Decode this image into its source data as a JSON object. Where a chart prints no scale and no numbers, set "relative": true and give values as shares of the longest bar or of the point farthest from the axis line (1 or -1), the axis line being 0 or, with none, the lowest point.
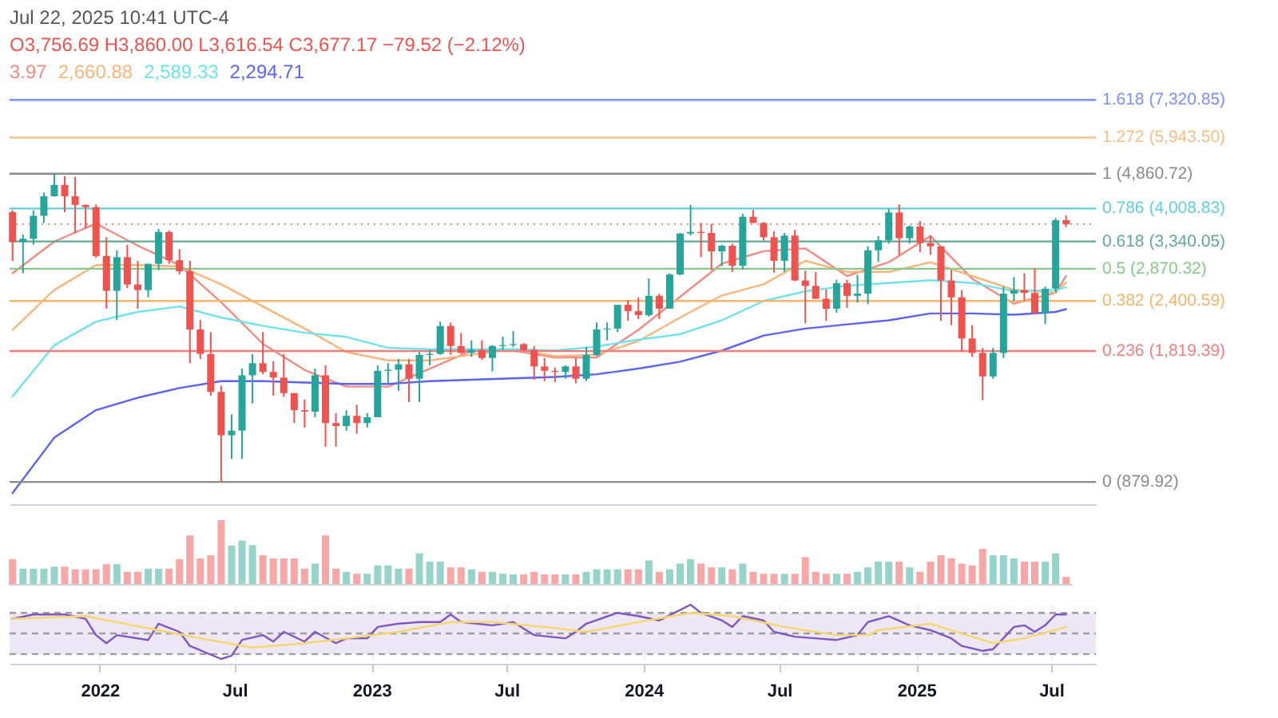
{
  "chart_data": [
    {
      "type": "candlestick",
      "title": "O3,756.69 H3,860.00 L3,616.54 C3,677.17 −79.52 (−2.12%)",
      "annotations": [
        "Jul 22, 2025 10:41 UTC-4",
        "3.97",
        "2,660.88",
        "2,589.33",
        "2,294.71"
      ],
      "log": true,
      "ylim": [
        778,
        7900
      ],
      "xlim": [
        "2021-09-02",
        "2025-08-30"
      ],
      "tick_labels": false,
      "x": [
        "2021-09-06",
        "2021-09-20",
        "2021-10-04",
        "2021-10-18",
        "2021-11-01",
        "2021-11-15",
        "2021-11-29",
        "2021-12-13",
        "2021-12-27",
        "2022-01-10",
        "2022-01-24",
        "2022-02-07",
        "2022-02-21",
        "2022-03-07",
        "2022-03-21",
        "2022-04-04",
        "2022-04-18",
        "2022-05-02",
        "2022-05-16",
        "2022-05-30",
        "2022-06-13",
        "2022-06-27",
        "2022-07-11",
        "2022-07-25",
        "2022-08-08",
        "2022-08-22",
        "2022-09-05",
        "2022-09-19",
        "2022-10-03",
        "2022-10-17",
        "2022-10-31",
        "2022-11-14",
        "2022-11-28",
        "2022-12-12",
        "2022-12-26",
        "2023-01-09",
        "2023-01-23",
        "2023-02-06",
        "2023-02-20",
        "2023-03-06",
        "2023-03-20",
        "2023-04-03",
        "2023-04-17",
        "2023-05-01",
        "2023-05-15",
        "2023-05-29",
        "2023-06-12",
        "2023-06-26",
        "2023-07-10",
        "2023-07-24",
        "2023-08-07",
        "2023-08-21",
        "2023-09-04",
        "2023-09-18",
        "2023-10-02",
        "2023-10-16",
        "2023-10-30",
        "2023-11-13",
        "2023-11-27",
        "2023-12-11",
        "2023-12-25",
        "2024-01-08",
        "2024-01-22",
        "2024-02-05",
        "2024-02-19",
        "2024-03-04",
        "2024-03-18",
        "2024-04-01",
        "2024-04-15",
        "2024-04-29",
        "2024-05-13",
        "2024-05-27",
        "2024-06-10",
        "2024-06-24",
        "2024-07-08",
        "2024-07-22",
        "2024-08-05",
        "2024-08-19",
        "2024-09-02",
        "2024-09-16",
        "2024-09-30",
        "2024-10-14",
        "2024-10-28",
        "2024-11-11",
        "2024-11-25",
        "2024-12-09",
        "2024-12-23",
        "2025-01-06",
        "2025-01-20",
        "2025-02-03",
        "2025-02-17",
        "2025-03-03",
        "2025-03-17",
        "2025-03-31",
        "2025-04-14",
        "2025-04-28",
        "2025-05-12",
        "2025-05-26",
        "2025-06-09",
        "2025-06-23",
        "2025-07-07",
        "2025-07-21"
      ],
      "ohlc": [
        [
          3930,
          3970,
          3000,
          3330
        ],
        [
          3330,
          3470,
          2800,
          3390
        ],
        [
          3390,
          3970,
          3280,
          3850
        ],
        [
          3850,
          4380,
          3700,
          4290
        ],
        [
          4290,
          4860.72,
          4280,
          4570
        ],
        [
          4570,
          4800,
          3930,
          4290
        ],
        [
          4290,
          4780,
          3500,
          4090
        ],
        [
          4090,
          4100,
          3600,
          4040
        ],
        [
          4040,
          4100,
          3050,
          3080
        ],
        [
          3080,
          3420,
          2300,
          2540
        ],
        [
          2540,
          3180,
          2160,
          3060
        ],
        [
          3060,
          3280,
          2580,
          2630
        ],
        [
          2630,
          3000,
          2300,
          2550
        ],
        [
          2550,
          2950,
          2450,
          2950
        ],
        [
          2950,
          3580,
          2850,
          3520
        ],
        [
          3520,
          3550,
          2950,
          3010
        ],
        [
          3010,
          3200,
          2780,
          2830
        ],
        [
          2830,
          3000,
          1700,
          2050
        ],
        [
          2050,
          2160,
          1740,
          1790
        ],
        [
          1790,
          2020,
          1420,
          1450
        ],
        [
          1450,
          1500,
          879.92,
          1140
        ],
        [
          1140,
          1280,
          1000,
          1170
        ],
        [
          1170,
          1650,
          1000,
          1590
        ],
        [
          1590,
          1790,
          1360,
          1700
        ],
        [
          1700,
          2020,
          1600,
          1620
        ],
        [
          1620,
          1720,
          1420,
          1570
        ],
        [
          1570,
          1790,
          1410,
          1440
        ],
        [
          1440,
          1440,
          1220,
          1310
        ],
        [
          1310,
          1390,
          1190,
          1300
        ],
        [
          1300,
          1650,
          1260,
          1590
        ],
        [
          1590,
          1680,
          1070,
          1220
        ],
        [
          1220,
          1290,
          1070,
          1200
        ],
        [
          1200,
          1310,
          1170,
          1270
        ],
        [
          1270,
          1350,
          1150,
          1220
        ],
        [
          1220,
          1290,
          1190,
          1260
        ],
        [
          1260,
          1680,
          1260,
          1630
        ],
        [
          1630,
          1700,
          1520,
          1640
        ],
        [
          1640,
          1740,
          1460,
          1690
        ],
        [
          1690,
          1740,
          1370,
          1560
        ],
        [
          1560,
          1810,
          1370,
          1780
        ],
        [
          1780,
          1830,
          1680,
          1790
        ],
        [
          1790,
          2140,
          1780,
          2090
        ],
        [
          2090,
          2130,
          1780,
          1870
        ],
        [
          1870,
          2010,
          1790,
          1800
        ],
        [
          1800,
          1930,
          1760,
          1830
        ],
        [
          1830,
          1930,
          1730,
          1750
        ],
        [
          1750,
          1880,
          1625,
          1870
        ],
        [
          1870,
          1970,
          1830,
          1880
        ],
        [
          1880,
          2030,
          1860,
          1890
        ],
        [
          1890,
          1900,
          1820,
          1830
        ],
        [
          1830,
          1870,
          1550,
          1670
        ],
        [
          1670,
          1750,
          1540,
          1630
        ],
        [
          1630,
          1660,
          1530,
          1620
        ],
        [
          1620,
          1680,
          1560,
          1670
        ],
        [
          1670,
          1750,
          1520,
          1560
        ],
        [
          1560,
          1860,
          1540,
          1780
        ],
        [
          1780,
          2130,
          1770,
          2050
        ],
        [
          2050,
          2130,
          1930,
          2060
        ],
        [
          2060,
          2350,
          2020,
          2350
        ],
        [
          2350,
          2410,
          2150,
          2270
        ],
        [
          2270,
          2450,
          2170,
          2220
        ],
        [
          2220,
          2720,
          2200,
          2470
        ],
        [
          2470,
          2500,
          2170,
          2300
        ],
        [
          2300,
          2800,
          2300,
          2780
        ],
        [
          2780,
          3500,
          2770,
          3490
        ],
        [
          3490,
          4090,
          3450,
          3520
        ],
        [
          3520,
          3700,
          3060,
          3500
        ],
        [
          3500,
          3680,
          2850,
          3160
        ],
        [
          3160,
          3280,
          2910,
          3260
        ],
        [
          3260,
          3300,
          2820,
          2920
        ],
        [
          2920,
          3890,
          2860,
          3830
        ],
        [
          3830,
          3980,
          3700,
          3700
        ],
        [
          3700,
          3720,
          3360,
          3420
        ],
        [
          3420,
          3530,
          2810,
          3000
        ],
        [
          3000,
          3500,
          2820,
          3450
        ],
        [
          3450,
          3560,
          2680,
          2690
        ],
        [
          2690,
          2840,
          2120,
          2610
        ],
        [
          2610,
          2820,
          2430,
          2430
        ],
        [
          2430,
          2560,
          2150,
          2300
        ],
        [
          2300,
          2700,
          2250,
          2650
        ],
        [
          2650,
          2700,
          2310,
          2470
        ],
        [
          2470,
          2770,
          2380,
          2500
        ],
        [
          2500,
          3250,
          2360,
          3180
        ],
        [
          3180,
          3440,
          2980,
          3360
        ],
        [
          3360,
          4000,
          3300,
          3920
        ],
        [
          3920,
          4100,
          3100,
          3400
        ],
        [
          3400,
          3650,
          3300,
          3630
        ],
        [
          3630,
          3740,
          3150,
          3310
        ],
        [
          3310,
          3450,
          3100,
          3250
        ],
        [
          3250,
          3250,
          2150,
          2690
        ],
        [
          2690,
          2850,
          2100,
          2450
        ],
        [
          2450,
          2550,
          1810,
          1950
        ],
        [
          1950,
          2100,
          1760,
          1800
        ],
        [
          1800,
          1850,
          1385,
          1580
        ],
        [
          1580,
          1850,
          1560,
          1800
        ],
        [
          1800,
          2600,
          1750,
          2500
        ],
        [
          2500,
          2740,
          2400,
          2550
        ],
        [
          2550,
          2800,
          2400,
          2510
        ],
        [
          2510,
          2880,
          2230,
          2250
        ],
        [
          2250,
          2600,
          2110,
          2570
        ],
        [
          2570,
          3800,
          2520,
          3756.69
        ],
        [
          3756.69,
          3860,
          3616.54,
          3677.17
        ]
      ],
      "colors": [
        "#ef5350",
        "#26a69a",
        "#26a69a",
        "#26a69a",
        "#26a69a",
        "#ef5350",
        "#ef5350",
        "#ef5350",
        "#ef5350",
        "#ef5350",
        "#26a69a",
        "#ef5350",
        "#ef5350",
        "#26a69a",
        "#26a69a",
        "#ef5350",
        "#ef5350",
        "#ef5350",
        "#ef5350",
        "#ef5350",
        "#ef5350",
        "#26a69a",
        "#26a69a",
        "#26a69a",
        "#ef5350",
        "#ef5350",
        "#ef5350",
        "#ef5350",
        "#ef5350",
        "#26a69a",
        "#ef5350",
        "#ef5350",
        "#26a69a",
        "#ef5350",
        "#26a69a",
        "#26a69a",
        "#26a69a",
        "#26a69a",
        "#ef5350",
        "#26a69a",
        "#26a69a",
        "#26a69a",
        "#ef5350",
        "#ef5350",
        "#26a69a",
        "#ef5350",
        "#26a69a",
        "#26a69a",
        "#26a69a",
        "#ef5350",
        "#ef5350",
        "#ef5350",
        "#ef5350",
        "#26a69a",
        "#ef5350",
        "#26a69a",
        "#26a69a",
        "#26a69a",
        "#26a69a",
        "#ef5350",
        "#ef5350",
        "#26a69a",
        "#ef5350",
        "#26a69a",
        "#26a69a",
        "#26a69a",
        "#ef5350",
        "#ef5350",
        "#26a69a",
        "#ef5350",
        "#26a69a",
        "#ef5350",
        "#ef5350",
        "#ef5350",
        "#26a69a",
        "#ef5350",
        "#ef5350",
        "#ef5350",
        "#ef5350",
        "#26a69a",
        "#ef5350",
        "#26a69a",
        "#26a69a",
        "#26a69a",
        "#26a69a",
        "#ef5350",
        "#26a69a",
        "#ef5350",
        "#ef5350",
        "#ef5350",
        "#ef5350",
        "#ef5350",
        "#ef5350",
        "#ef5350",
        "#26a69a",
        "#26a69a",
        "#26a69a",
        "#ef5350",
        "#ef5350",
        "#26a69a",
        "#26a69a",
        "#ef5350"
      ],
      "series": [
        {
          "type": "line",
          "color": "#f28b82",
          "x": [
            "2021-09-06",
            "2021-11-01",
            "2021-12-27",
            "2022-02-21",
            "2022-04-18",
            "2022-06-13",
            "2022-08-08",
            "2022-10-03",
            "2022-11-28",
            "2023-01-23",
            "2023-03-20",
            "2023-05-15",
            "2023-07-10",
            "2023-09-04",
            "2023-10-30",
            "2023-12-25",
            "2024-02-19",
            "2024-04-15",
            "2024-06-10",
            "2024-08-05",
            "2024-09-30",
            "2024-11-25",
            "2025-01-20",
            "2025-03-17",
            "2025-05-12",
            "2025-07-07",
            "2025-07-21"
          ],
          "values": [
            2799,
            3338,
            3688,
            3262,
            2930,
            2383,
            1893,
            1637,
            1493,
            1493,
            1650,
            1823,
            1823,
            1755,
            1755,
            2045,
            2457,
            2953,
            3164,
            3213,
            2757,
            2976,
            3441,
            2715,
            2365,
            2514,
            2757
          ]
        },
        {
          "type": "line",
          "color": "#f9b57a",
          "x": [
            "2021-09-06",
            "2021-11-01",
            "2021-12-27",
            "2022-02-21",
            "2022-04-18",
            "2022-06-13",
            "2022-08-08",
            "2022-10-03",
            "2022-11-28",
            "2023-01-23",
            "2023-03-20",
            "2023-05-15",
            "2023-07-10",
            "2023-09-04",
            "2023-10-30",
            "2023-12-25",
            "2024-02-19",
            "2024-04-15",
            "2024-06-10",
            "2024-08-05",
            "2024-09-30",
            "2024-11-25",
            "2025-01-20",
            "2025-03-17",
            "2025-05-12",
            "2025-07-07",
            "2025-07-21"
          ],
          "values": [
            2045,
            2553,
            2930,
            2930,
            2908,
            2633,
            2329,
            2060,
            1809,
            1727,
            1727,
            1782,
            1837,
            1768,
            1782,
            1922,
            2190,
            2476,
            2633,
            2999,
            2821,
            2821,
            2976,
            2757,
            2553,
            2514,
            2660.88
          ]
        },
        {
          "type": "line",
          "color": "#6ee3ec",
          "x": [
            "2021-09-06",
            "2021-11-01",
            "2021-12-27",
            "2022-02-21",
            "2022-04-18",
            "2022-06-13",
            "2022-08-08",
            "2022-10-03",
            "2022-11-28",
            "2023-01-23",
            "2023-03-20",
            "2023-05-15",
            "2023-07-10",
            "2023-09-04",
            "2023-10-30",
            "2023-12-25",
            "2024-02-19",
            "2024-04-15",
            "2024-06-10",
            "2024-08-05",
            "2024-09-30",
            "2024-11-25",
            "2025-01-20",
            "2025-03-17",
            "2025-05-12",
            "2025-07-07",
            "2025-07-21"
          ],
          "values": [
            1415,
            1879,
            2141,
            2259,
            2329,
            2190,
            2092,
            2013,
            1967,
            1851,
            1837,
            1837,
            1837,
            1823,
            1865,
            1937,
            1997,
            2157,
            2401,
            2533,
            2613,
            2653,
            2694,
            2653,
            2533,
            2553,
            2589.33
          ]
        },
        {
          "type": "line",
          "color": "#5b63f0",
          "x": [
            "2021-09-06",
            "2021-11-01",
            "2021-12-27",
            "2022-02-21",
            "2022-04-18",
            "2022-06-13",
            "2022-08-08",
            "2022-10-03",
            "2022-11-28",
            "2023-01-23",
            "2023-03-20",
            "2023-05-15",
            "2023-07-10",
            "2023-09-04",
            "2023-10-30",
            "2023-12-25",
            "2024-02-19",
            "2024-04-15",
            "2024-06-10",
            "2024-08-05",
            "2024-09-30",
            "2024-11-25",
            "2025-01-20",
            "2025-03-17",
            "2025-05-12",
            "2025-07-07",
            "2025-07-21"
          ],
          "values": [
            828,
            1125,
            1311,
            1404,
            1482,
            1539,
            1539,
            1527,
            1516,
            1516,
            1539,
            1551,
            1563,
            1575,
            1599,
            1650,
            1714,
            1823,
            1982,
            2060,
            2108,
            2157,
            2241,
            2241,
            2224,
            2259,
            2294.71
          ]
        }
      ],
      "ref_lines": [
        {
          "axis": "y",
          "value": 7320.85,
          "label": "1.618 (7,320.85)",
          "color": "#7b8ff7"
        },
        {
          "axis": "y",
          "value": 5943.5,
          "label": "1.272 (5,943.50)",
          "color": "#f5bf85"
        },
        {
          "axis": "y",
          "value": 4860.72,
          "label": "1 (4,860.72)",
          "color": "#8a8a8a"
        },
        {
          "axis": "y",
          "value": 4008.83,
          "label": "0.786 (4,008.83)",
          "color": "#5fd0da"
        },
        {
          "axis": "y",
          "value": 3340.05,
          "label": "0.618 (3,340.05)",
          "color": "#5fa896"
        },
        {
          "axis": "y",
          "value": 2870.32,
          "label": "0.5 (2,870.32)",
          "color": "#86c98a"
        },
        {
          "axis": "y",
          "value": 2400.59,
          "label": "0.382 (2,400.59)",
          "color": "#f5b56b"
        },
        {
          "axis": "y",
          "value": 1819.39,
          "label": "0.236 (1,819.39)",
          "color": "#ef7f7f"
        },
        {
          "axis": "y",
          "value": 879.92,
          "label": "0 (879.92)",
          "color": "#8a8a8a"
        },
        {
          "axis": "y",
          "value": 3677.17,
          "color": "#f28b82",
          "line_style": "dotted"
        }
      ]
    },
    {
      "type": "bar",
      "relative": true,
      "categories": [
        null,
        null,
        null,
        null,
        null,
        null,
        null,
        null,
        null,
        null,
        null,
        null,
        null,
        null,
        null,
        null,
        null,
        null,
        null,
        null,
        null,
        null,
        null,
        null,
        null,
        null,
        null,
        null,
        null,
        null,
        null,
        null,
        null,
        null,
        null,
        null,
        null,
        null,
        null,
        null,
        null,
        null,
        null,
        null,
        null,
        null,
        null,
        null,
        null,
        null,
        null,
        null,
        null,
        null,
        null,
        null,
        null,
        null,
        null,
        null,
        null,
        null,
        null,
        null,
        null,
        null,
        null,
        null,
        null,
        null,
        null,
        null,
        null,
        null,
        null,
        null,
        null,
        null,
        null,
        null,
        null,
        null,
        null,
        null,
        null,
        null,
        null,
        null,
        null,
        null,
        null,
        null,
        null,
        null,
        null,
        null,
        null,
        null,
        null,
        null,
        null,
        null
      ],
      "values": [
        0.39,
        0.24,
        0.24,
        0.24,
        0.27,
        0.27,
        0.23,
        0.23,
        0.23,
        0.31,
        0.31,
        0.19,
        0.19,
        0.24,
        0.24,
        0.24,
        0.39,
        0.76,
        0.4,
        0.45,
        1,
        0.6,
        0.68,
        0.61,
        0.45,
        0.4,
        0.4,
        0.4,
        0.24,
        0.32,
        0.76,
        0.24,
        0.19,
        0.16,
        0.16,
        0.29,
        0.29,
        0.24,
        0.24,
        0.48,
        0.35,
        0.35,
        0.26,
        0.26,
        0.23,
        0.19,
        0.19,
        0.16,
        0.15,
        0.15,
        0.19,
        0.15,
        0.15,
        0.15,
        0.15,
        0.19,
        0.23,
        0.23,
        0.23,
        0.23,
        0.23,
        0.37,
        0.19,
        0.23,
        0.32,
        0.39,
        0.32,
        0.26,
        0.26,
        0.23,
        0.32,
        0.19,
        0.16,
        0.16,
        0.16,
        0.16,
        0.42,
        0.19,
        0.16,
        0.16,
        0.16,
        0.19,
        0.26,
        0.35,
        0.35,
        0.35,
        0.26,
        0.19,
        0.35,
        0.45,
        0.4,
        0.32,
        0.29,
        0.55,
        0.45,
        0.45,
        0.4,
        0.35,
        0.35,
        0.35,
        0.48,
        0.11
      ],
      "colors": [
        "#f7a8a6",
        "#96d3c9",
        "#96d3c9",
        "#96d3c9",
        "#96d3c9",
        "#f7a8a6",
        "#f7a8a6",
        "#f7a8a6",
        "#f7a8a6",
        "#f7a8a6",
        "#96d3c9",
        "#f7a8a6",
        "#f7a8a6",
        "#96d3c9",
        "#96d3c9",
        "#f7a8a6",
        "#f7a8a6",
        "#f7a8a6",
        "#f7a8a6",
        "#f7a8a6",
        "#f7a8a6",
        "#96d3c9",
        "#96d3c9",
        "#96d3c9",
        "#f7a8a6",
        "#f7a8a6",
        "#f7a8a6",
        "#f7a8a6",
        "#f7a8a6",
        "#96d3c9",
        "#f7a8a6",
        "#f7a8a6",
        "#96d3c9",
        "#f7a8a6",
        "#96d3c9",
        "#96d3c9",
        "#96d3c9",
        "#96d3c9",
        "#f7a8a6",
        "#96d3c9",
        "#96d3c9",
        "#96d3c9",
        "#f7a8a6",
        "#f7a8a6",
        "#96d3c9",
        "#f7a8a6",
        "#96d3c9",
        "#96d3c9",
        "#96d3c9",
        "#f7a8a6",
        "#f7a8a6",
        "#f7a8a6",
        "#f7a8a6",
        "#96d3c9",
        "#f7a8a6",
        "#96d3c9",
        "#96d3c9",
        "#96d3c9",
        "#96d3c9",
        "#f7a8a6",
        "#f7a8a6",
        "#96d3c9",
        "#f7a8a6",
        "#96d3c9",
        "#96d3c9",
        "#96d3c9",
        "#f7a8a6",
        "#f7a8a6",
        "#96d3c9",
        "#f7a8a6",
        "#96d3c9",
        "#f7a8a6",
        "#f7a8a6",
        "#f7a8a6",
        "#96d3c9",
        "#f7a8a6",
        "#f7a8a6",
        "#f7a8a6",
        "#f7a8a6",
        "#96d3c9",
        "#f7a8a6",
        "#96d3c9",
        "#96d3c9",
        "#96d3c9",
        "#96d3c9",
        "#f7a8a6",
        "#96d3c9",
        "#f7a8a6",
        "#f7a8a6",
        "#f7a8a6",
        "#f7a8a6",
        "#f7a8a6",
        "#f7a8a6",
        "#f7a8a6",
        "#96d3c9",
        "#96d3c9",
        "#96d3c9",
        "#f7a8a6",
        "#f7a8a6",
        "#96d3c9",
        "#96d3c9",
        "#f7a8a6"
      ]
    },
    {
      "type": "line",
      "relative": true,
      "tick_labels": "x",
      "grid": "x",
      "xlim": [
        "2021-09-02",
        "2025-08-30"
      ],
      "xticks": [
        {
          "value": "2022-01-01",
          "label": "2022"
        },
        {
          "value": "2022-07-01",
          "label": "Jul"
        },
        {
          "value": "2023-01-01",
          "label": "2023"
        },
        {
          "value": "2023-07-01",
          "label": "Jul"
        },
        {
          "value": "2024-01-01",
          "label": "2024"
        },
        {
          "value": "2024-07-01",
          "label": "Jul"
        },
        {
          "value": "2025-01-01",
          "label": "2025"
        },
        {
          "value": "2025-07-01",
          "label": "Jul"
        }
      ],
      "bands": [
        {
          "axis": "y",
          "from": 0.09,
          "to": 0.85,
          "color": "#ede7f6"
        }
      ],
      "ref_lines": [
        {
          "axis": "y",
          "value": 0.85,
          "color": "#9e9e9e",
          "line_style": "dashed"
        },
        {
          "axis": "y",
          "value": 0.47,
          "color": "#9e9e9e",
          "line_style": "dashed"
        },
        {
          "axis": "y",
          "value": 0.09,
          "color": "#9e9e9e",
          "line_style": "dashed"
        }
      ],
      "series": [
        {
          "color": "#7e57c2",
          "x": [
            "2021-09-06",
            "2021-10-04",
            "2021-11-15",
            "2021-12-13",
            "2021-12-27",
            "2022-01-10",
            "2022-01-24",
            "2022-03-07",
            "2022-03-21",
            "2022-04-18",
            "2022-05-02",
            "2022-06-13",
            "2022-06-27",
            "2022-07-11",
            "2022-08-08",
            "2022-08-22",
            "2022-09-05",
            "2022-10-03",
            "2022-10-17",
            "2022-11-14",
            "2022-11-28",
            "2022-12-26",
            "2023-01-09",
            "2023-02-06",
            "2023-03-06",
            "2023-04-03",
            "2023-04-17",
            "2023-05-01",
            "2023-06-12",
            "2023-07-10",
            "2023-08-07",
            "2023-09-18",
            "2023-10-02",
            "2023-10-16",
            "2023-11-27",
            "2023-12-25",
            "2024-01-22",
            "2024-03-04",
            "2024-03-18",
            "2024-04-15",
            "2024-04-29",
            "2024-05-13",
            "2024-06-10",
            "2024-06-24",
            "2024-07-22",
            "2024-08-19",
            "2024-09-16",
            "2024-10-14",
            "2024-10-28",
            "2024-11-25",
            "2024-12-23",
            "2025-01-20",
            "2025-02-17",
            "2025-03-03",
            "2025-03-31",
            "2025-04-14",
            "2025-05-12",
            "2025-05-26",
            "2025-06-09",
            "2025-06-23",
            "2025-07-07",
            "2025-07-21"
          ],
          "values": [
            0.74,
            0.82,
            0.82,
            0.74,
            0.44,
            0.29,
            0.44,
            0.35,
            0.65,
            0.5,
            0.24,
            0,
            0.06,
            0.35,
            0.44,
            0.32,
            0.5,
            0.32,
            0.5,
            0.29,
            0.38,
            0.38,
            0.59,
            0.65,
            0.68,
            0.68,
            0.82,
            0.68,
            0.62,
            0.68,
            0.44,
            0.38,
            0.5,
            0.65,
            0.85,
            0.79,
            0.71,
            1,
            0.85,
            0.71,
            0.59,
            0.79,
            0.71,
            0.5,
            0.41,
            0.38,
            0.35,
            0.44,
            0.68,
            0.79,
            0.62,
            0.53,
            0.38,
            0.24,
            0.15,
            0.18,
            0.59,
            0.62,
            0.5,
            0.62,
            0.82,
            0.82
          ]
        },
        {
          "color": "#f5d76e",
          "x": [
            "2021-09-06",
            "2021-12-13",
            "2022-03-21",
            "2022-05-16",
            "2022-07-25",
            "2022-10-03",
            "2022-11-28",
            "2023-02-06",
            "2023-04-17",
            "2023-06-12",
            "2023-08-21",
            "2023-10-16",
            "2023-12-25",
            "2024-03-04",
            "2024-04-29",
            "2024-07-08",
            "2024-09-16",
            "2024-10-28",
            "2024-11-11",
            "2025-01-20",
            "2025-03-31",
            "2025-04-14",
            "2025-05-26",
            "2025-07-21"
          ],
          "values": [
            0.74,
            0.79,
            0.53,
            0.38,
            0.21,
            0.29,
            0.38,
            0.5,
            0.68,
            0.68,
            0.59,
            0.5,
            0.68,
            0.85,
            0.79,
            0.59,
            0.44,
            0.44,
            0.53,
            0.65,
            0.35,
            0.29,
            0.38,
            0.59
          ]
        }
      ]
    }
  ]
}
